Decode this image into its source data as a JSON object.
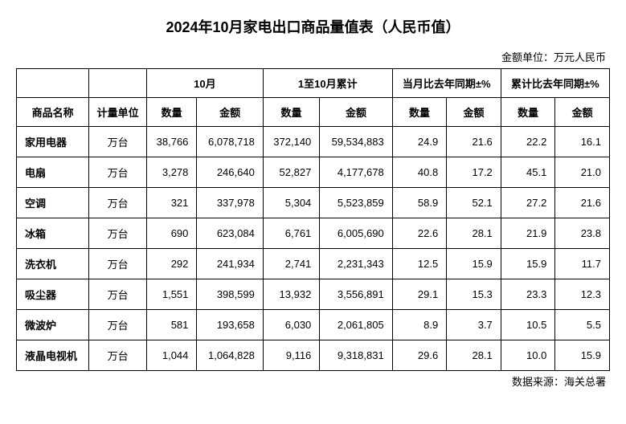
{
  "title": "2024年10月家电出口商品量值表（人民币值）",
  "unit_label": "金额单位：万元人民币",
  "source": "数据来源：海关总署",
  "header": {
    "group_oct": "10月",
    "group_ytd": "1至10月累计",
    "group_mom": "当月比去年同期±%",
    "group_yoy": "累计比去年同期±%",
    "col_name": "商品名称",
    "col_unit": "计量单位",
    "col_qty": "数量",
    "col_amt": "金额"
  },
  "rows": [
    {
      "name": "家用电器",
      "unit": "万台",
      "oct_qty": "38,766",
      "oct_amt": "6,078,718",
      "ytd_qty": "372,140",
      "ytd_amt": "59,534,883",
      "mom_qty": "24.9",
      "mom_amt": "21.6",
      "yoy_qty": "22.2",
      "yoy_amt": "16.1"
    },
    {
      "name": "电扇",
      "unit": "万台",
      "oct_qty": "3,278",
      "oct_amt": "246,640",
      "ytd_qty": "52,827",
      "ytd_amt": "4,177,678",
      "mom_qty": "40.8",
      "mom_amt": "17.2",
      "yoy_qty": "45.1",
      "yoy_amt": "21.0"
    },
    {
      "name": "空调",
      "unit": "万台",
      "oct_qty": "321",
      "oct_amt": "337,978",
      "ytd_qty": "5,304",
      "ytd_amt": "5,523,859",
      "mom_qty": "58.9",
      "mom_amt": "52.1",
      "yoy_qty": "27.2",
      "yoy_amt": "21.6"
    },
    {
      "name": "冰箱",
      "unit": "万台",
      "oct_qty": "690",
      "oct_amt": "623,084",
      "ytd_qty": "6,761",
      "ytd_amt": "6,005,690",
      "mom_qty": "22.6",
      "mom_amt": "28.1",
      "yoy_qty": "21.9",
      "yoy_amt": "23.8"
    },
    {
      "name": "洗衣机",
      "unit": "万台",
      "oct_qty": "292",
      "oct_amt": "241,934",
      "ytd_qty": "2,741",
      "ytd_amt": "2,231,343",
      "mom_qty": "12.5",
      "mom_amt": "15.9",
      "yoy_qty": "15.9",
      "yoy_amt": "11.7"
    },
    {
      "name": "吸尘器",
      "unit": "万台",
      "oct_qty": "1,551",
      "oct_amt": "398,599",
      "ytd_qty": "13,932",
      "ytd_amt": "3,556,891",
      "mom_qty": "29.1",
      "mom_amt": "15.3",
      "yoy_qty": "23.3",
      "yoy_amt": "12.3"
    },
    {
      "name": "微波炉",
      "unit": "万台",
      "oct_qty": "581",
      "oct_amt": "193,658",
      "ytd_qty": "6,030",
      "ytd_amt": "2,061,805",
      "mom_qty": "8.9",
      "mom_amt": "3.7",
      "yoy_qty": "10.5",
      "yoy_amt": "5.5"
    },
    {
      "name": "液晶电视机",
      "unit": "万台",
      "oct_qty": "1,044",
      "oct_amt": "1,064,828",
      "ytd_qty": "9,116",
      "ytd_amt": "9,318,831",
      "mom_qty": "29.6",
      "mom_amt": "28.1",
      "yoy_qty": "10.0",
      "yoy_amt": "15.9"
    }
  ],
  "col_widths": {
    "name": 76,
    "unit": 66,
    "oct_qty": 70,
    "oct_amt": 88,
    "ytd_qty": 80,
    "ytd_amt": 96,
    "mom_qty": 50,
    "mom_amt": 50,
    "yoy_qty": 50,
    "yoy_amt": 50
  }
}
